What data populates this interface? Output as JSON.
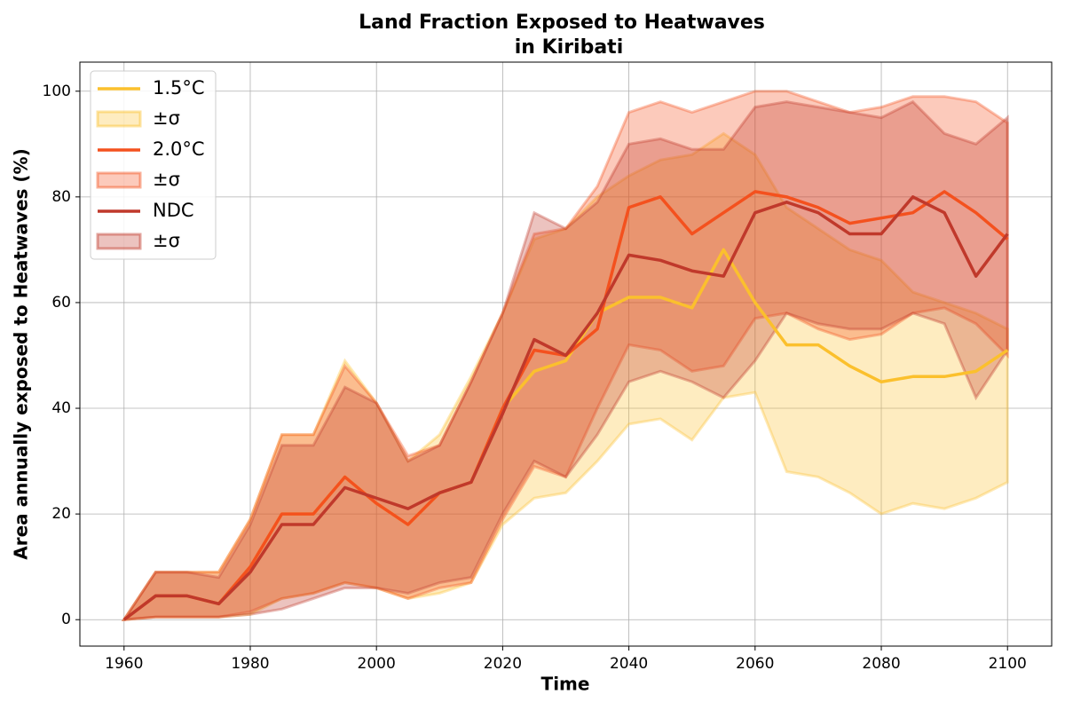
{
  "chart_data": {
    "type": "line",
    "title": [
      "Land Fraction Exposed to Heatwaves",
      "in Kiribati"
    ],
    "xlabel": "Time",
    "ylabel": "Area annually exposed to Heatwaves (%)",
    "x": [
      1960,
      1965,
      1970,
      1975,
      1980,
      1985,
      1990,
      1995,
      2000,
      2005,
      2010,
      2015,
      2020,
      2025,
      2030,
      2035,
      2040,
      2045,
      2050,
      2055,
      2060,
      2065,
      2070,
      2075,
      2080,
      2085,
      2090,
      2095,
      2100
    ],
    "series": [
      {
        "name": "1.5°C",
        "band_label": "±σ",
        "color": "#fbc02d",
        "values": [
          0,
          4.5,
          4.5,
          3,
          10,
          20,
          20,
          27,
          22,
          18,
          24,
          26,
          40,
          47,
          49,
          58,
          61,
          61,
          59,
          70,
          60,
          52,
          52,
          48,
          45,
          46,
          46,
          47,
          51
        ],
        "lower": [
          0,
          0.5,
          0.5,
          0.5,
          1,
          4,
          5,
          7,
          6,
          4,
          5,
          7,
          18,
          23,
          24,
          30,
          37,
          38,
          34,
          42,
          43,
          28,
          27,
          24,
          20,
          22,
          21,
          23,
          26
        ],
        "upper": [
          0,
          9,
          9,
          9,
          19,
          35,
          35,
          49,
          41,
          30,
          35,
          46,
          58,
          72,
          74,
          80,
          84,
          87,
          88,
          92,
          88,
          78,
          74,
          70,
          68,
          62,
          60,
          58,
          55
        ]
      },
      {
        "name": "2.0°C",
        "band_label": "±σ",
        "color": "#f4511e",
        "values": [
          0,
          4.5,
          4.5,
          3,
          10,
          20,
          20,
          27,
          22,
          18,
          24,
          26,
          40,
          51,
          50,
          55,
          78,
          80,
          73,
          77,
          81,
          80,
          78,
          75,
          76,
          77,
          81,
          77,
          72
        ],
        "lower": [
          0,
          0.5,
          0.5,
          0.5,
          1.5,
          4,
          5,
          7,
          6,
          4,
          6,
          7,
          19,
          29,
          27,
          40,
          52,
          51,
          47,
          48,
          57,
          58,
          55,
          53,
          54,
          58,
          59,
          56,
          50
        ],
        "upper": [
          0,
          9,
          9,
          9,
          19,
          35,
          35,
          48,
          41,
          31,
          33,
          45,
          58,
          73,
          74,
          82,
          96,
          98,
          96,
          98,
          100,
          100,
          98,
          96,
          97,
          99,
          99,
          98,
          94
        ]
      },
      {
        "name": "NDC",
        "band_label": "±σ",
        "color": "#c0392b",
        "values": [
          0,
          4.5,
          4.5,
          3,
          9,
          18,
          18,
          25,
          23,
          21,
          24,
          26,
          39,
          53,
          50,
          58,
          69,
          68,
          66,
          65,
          77,
          79,
          77,
          73,
          73,
          80,
          77,
          65,
          73
        ],
        "lower": [
          0,
          0.5,
          0.5,
          0.5,
          1,
          2,
          4,
          6,
          6,
          5,
          7,
          8,
          20,
          30,
          27,
          35,
          45,
          47,
          45,
          42,
          49,
          58,
          56,
          55,
          55,
          58,
          56,
          42,
          51
        ],
        "upper": [
          0,
          9,
          9,
          8,
          18,
          33,
          33,
          44,
          41,
          30,
          33,
          45,
          58,
          77,
          74,
          79,
          90,
          91,
          89,
          89,
          97,
          98,
          97,
          96,
          95,
          98,
          92,
          90,
          95
        ]
      }
    ],
    "xlim": [
      1953,
      2107
    ],
    "ylim": [
      -5,
      105.5
    ],
    "xticks": [
      1960,
      1980,
      2000,
      2020,
      2040,
      2060,
      2080,
      2100
    ],
    "yticks": [
      0,
      20,
      40,
      60,
      80,
      100
    ],
    "grid": true,
    "legend": "upper left"
  }
}
